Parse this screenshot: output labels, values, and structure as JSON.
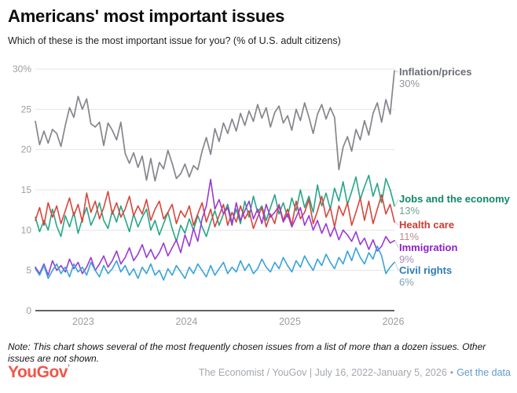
{
  "header": {
    "title": "Americans' most important issues",
    "subtitle": "Which of these is the most important issue for you? (% of U.S. adult citizens)"
  },
  "footer": {
    "note": "Note: This chart shows several of the most frequently chosen issues from a list of more than a dozen issues. Other issues are not shown.",
    "logo": "YouGov",
    "logo_tick": "’",
    "attribution": "The Economist / YouGov | July 16, 2022-January 5, 2026",
    "bullet": "•",
    "link": "Get the data"
  },
  "colors": {
    "grid": "#e5e5e5",
    "axis": "#2f2f33",
    "tick_text": "#9b9ea3",
    "leader": "#c9ccd1"
  },
  "chart_data": {
    "type": "line",
    "title": "Americans' most important issues",
    "subtitle": "Which of these is the most important issue for you? (% of U.S. adult citizens)",
    "xlabel": "",
    "ylabel": "% of U.S. adult citizens",
    "x_range": [
      2022.537,
      2026.011
    ],
    "x_range_label": "July 16, 2022 - January 5, 2026",
    "ylim": [
      0,
      30
    ],
    "grid": "horizontal",
    "legend_position": "right-end-labels",
    "yticks": [
      {
        "value": 0,
        "label": "0"
      },
      {
        "value": 5,
        "label": "5"
      },
      {
        "value": 10,
        "label": "10"
      },
      {
        "value": 15,
        "label": "15"
      },
      {
        "value": 20,
        "label": "20"
      },
      {
        "value": 25,
        "label": "25"
      },
      {
        "value": 30,
        "label": "30%"
      }
    ],
    "xticks": [
      {
        "value": 2023,
        "label": "2023"
      },
      {
        "value": 2024,
        "label": "2024"
      },
      {
        "value": 2025,
        "label": "2025"
      },
      {
        "value": 2026,
        "label": "2026"
      }
    ],
    "series": [
      {
        "name": "Inflation/prices",
        "value_label": "30%",
        "line_color": "#85868c",
        "label_color": "#6b6e76",
        "value_color": "#94969c",
        "label_y": 84,
        "values": [
          23.5,
          20.6,
          22.3,
          20.8,
          22.5,
          22.0,
          20.4,
          23.0,
          25.2,
          24.0,
          26.6,
          25.0,
          26.3,
          23.2,
          22.8,
          23.4,
          20.5,
          23.3,
          22.4,
          21.2,
          23.4,
          19.5,
          18.3,
          19.6,
          17.8,
          19.2,
          16.2,
          18.9,
          16.1,
          18.4,
          17.6,
          19.9,
          18.3,
          16.4,
          17.0,
          18.2,
          16.6,
          18.0,
          17.5,
          19.8,
          21.5,
          19.4,
          22.6,
          21.0,
          23.3,
          22.0,
          23.8,
          22.3,
          24.5,
          23.0,
          24.8,
          23.5,
          25.6,
          23.9,
          25.2,
          22.8,
          24.6,
          25.4,
          23.3,
          24.2,
          22.4,
          25.0,
          23.6,
          25.8,
          24.0,
          22.0,
          24.4,
          25.6,
          23.8,
          25.2,
          24.0,
          17.5,
          20.3,
          21.6,
          19.8,
          22.5,
          21.2,
          23.6,
          21.8,
          24.5,
          25.8,
          23.4,
          26.2,
          24.4,
          29.8
        ]
      },
      {
        "name": "Jobs and the economy",
        "value_label": "13%",
        "line_color": "#26a689",
        "label_color": "#11886a",
        "value_color": "#72a396",
        "label_y": 246,
        "values": [
          11.6,
          9.8,
          11.2,
          10.0,
          12.6,
          10.5,
          9.2,
          11.8,
          10.4,
          12.2,
          9.6,
          11.4,
          12.8,
          10.6,
          11.8,
          13.4,
          11.2,
          10.2,
          12.4,
          11.0,
          13.0,
          11.4,
          9.8,
          12.0,
          10.4,
          11.6,
          12.6,
          10.0,
          11.2,
          9.4,
          10.8,
          12.2,
          10.2,
          8.6,
          10.6,
          9.6,
          11.4,
          10.0,
          11.8,
          10.4,
          9.2,
          11.0,
          12.4,
          10.6,
          12.0,
          13.2,
          11.0,
          12.6,
          10.8,
          13.6,
          11.6,
          14.2,
          12.2,
          13.0,
          11.2,
          12.8,
          14.4,
          12.0,
          13.4,
          11.6,
          14.0,
          12.4,
          15.0,
          12.8,
          14.2,
          12.2,
          15.6,
          13.0,
          14.6,
          12.6,
          15.2,
          13.6,
          16.0,
          13.2,
          14.8,
          16.6,
          13.8,
          15.4,
          16.8,
          14.2,
          15.8,
          13.4,
          16.4,
          15.0,
          13.0
        ]
      },
      {
        "name": "Health care",
        "value_label": "11%",
        "line_color": "#d8453b",
        "label_color": "#cf3a30",
        "value_color": "#bb8f8b",
        "label_y": 279,
        "values": [
          11.2,
          12.8,
          10.6,
          13.4,
          11.6,
          13.0,
          10.8,
          12.4,
          14.0,
          11.8,
          13.2,
          11.0,
          14.6,
          12.2,
          13.6,
          11.4,
          12.8,
          14.8,
          12.0,
          13.4,
          11.6,
          12.6,
          14.2,
          11.8,
          13.0,
          12.0,
          13.8,
          11.2,
          12.6,
          13.6,
          11.4,
          12.2,
          13.2,
          10.8,
          12.4,
          11.6,
          13.0,
          10.6,
          12.0,
          13.4,
          11.0,
          12.6,
          10.4,
          11.8,
          13.2,
          10.6,
          12.2,
          11.0,
          13.0,
          11.4,
          12.4,
          10.2,
          11.6,
          12.8,
          10.4,
          12.0,
          10.8,
          13.2,
          11.2,
          12.6,
          10.6,
          13.6,
          11.4,
          12.2,
          13.8,
          10.8,
          12.4,
          14.2,
          11.6,
          12.8,
          10.4,
          13.0,
          11.8,
          13.4,
          10.6,
          12.2,
          14.0,
          11.2,
          13.6,
          10.8,
          12.6,
          14.4,
          12.0,
          13.2,
          11.0
        ]
      },
      {
        "name": "Immigration",
        "value_label": "9%",
        "line_color": "#9a3ad2",
        "label_color": "#8d1fca",
        "value_color": "#a78cba",
        "label_y": 308,
        "values": [
          5.4,
          4.6,
          5.8,
          4.4,
          6.2,
          5.0,
          5.6,
          4.8,
          6.4,
          5.2,
          6.0,
          4.6,
          5.4,
          6.6,
          5.0,
          5.8,
          6.8,
          5.4,
          6.2,
          7.4,
          5.8,
          6.6,
          7.8,
          6.2,
          7.0,
          8.2,
          6.6,
          7.6,
          6.4,
          7.2,
          8.4,
          6.8,
          7.8,
          8.8,
          7.2,
          9.4,
          8.0,
          10.2,
          8.6,
          11.4,
          13.0,
          16.3,
          12.6,
          13.8,
          12.0,
          12.8,
          10.6,
          13.4,
          11.2,
          12.4,
          13.6,
          11.4,
          12.6,
          10.8,
          13.2,
          11.6,
          12.2,
          13.0,
          11.0,
          12.0,
          10.4,
          11.6,
          12.8,
          10.6,
          11.8,
          10.0,
          11.2,
          9.6,
          10.8,
          9.2,
          10.4,
          8.8,
          10.0,
          9.4,
          8.6,
          9.8,
          8.2,
          9.0,
          7.6,
          8.8,
          7.4,
          8.0,
          9.2,
          8.4,
          8.7
        ]
      },
      {
        "name": "Civil rights",
        "value_label": "6%",
        "line_color": "#37a3da",
        "label_color": "#2d7cb7",
        "value_color": "#809fb4",
        "label_y": 337,
        "values": [
          5.2,
          4.4,
          5.6,
          4.0,
          5.0,
          5.8,
          4.6,
          5.4,
          4.2,
          5.8,
          4.8,
          5.4,
          4.4,
          6.0,
          5.0,
          4.2,
          5.6,
          4.6,
          5.2,
          6.2,
          4.8,
          5.6,
          4.4,
          5.2,
          4.0,
          5.4,
          4.6,
          5.8,
          4.4,
          5.0,
          3.8,
          5.2,
          4.4,
          5.6,
          4.8,
          4.0,
          5.4,
          4.6,
          5.8,
          5.0,
          4.2,
          5.6,
          4.4,
          5.2,
          6.0,
          4.6,
          5.4,
          4.8,
          6.2,
          5.0,
          5.8,
          4.6,
          5.2,
          6.4,
          5.4,
          4.8,
          6.0,
          5.2,
          6.6,
          5.6,
          4.8,
          6.2,
          5.4,
          6.8,
          5.8,
          5.0,
          6.4,
          5.6,
          7.0,
          6.0,
          5.2,
          6.6,
          5.8,
          7.4,
          6.2,
          7.8,
          6.6,
          5.8,
          7.2,
          6.4,
          8.0,
          6.8,
          4.6,
          5.4,
          6.0
        ]
      }
    ]
  }
}
